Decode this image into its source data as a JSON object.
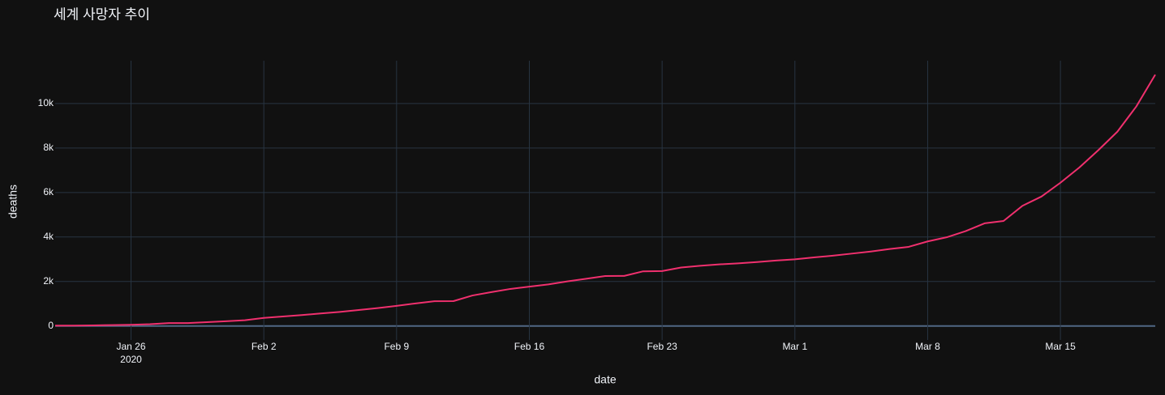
{
  "chart_data": {
    "type": "line",
    "title": "세계 사망자 추이",
    "x_label": "date",
    "y_label": "deaths",
    "x": [
      "2020-01-22",
      "2020-01-23",
      "2020-01-24",
      "2020-01-25",
      "2020-01-26",
      "2020-01-27",
      "2020-01-28",
      "2020-01-29",
      "2020-01-30",
      "2020-01-31",
      "2020-02-01",
      "2020-02-02",
      "2020-02-03",
      "2020-02-04",
      "2020-02-05",
      "2020-02-06",
      "2020-02-07",
      "2020-02-08",
      "2020-02-09",
      "2020-02-10",
      "2020-02-11",
      "2020-02-12",
      "2020-02-13",
      "2020-02-14",
      "2020-02-15",
      "2020-02-16",
      "2020-02-17",
      "2020-02-18",
      "2020-02-19",
      "2020-02-20",
      "2020-02-21",
      "2020-02-22",
      "2020-02-23",
      "2020-02-24",
      "2020-02-25",
      "2020-02-26",
      "2020-02-27",
      "2020-02-28",
      "2020-02-29",
      "2020-03-01",
      "2020-03-02",
      "2020-03-03",
      "2020-03-04",
      "2020-03-05",
      "2020-03-06",
      "2020-03-07",
      "2020-03-08",
      "2020-03-09",
      "2020-03-10",
      "2020-03-11",
      "2020-03-12",
      "2020-03-13",
      "2020-03-14",
      "2020-03-15",
      "2020-03-16",
      "2020-03-17",
      "2020-03-18",
      "2020-03-19",
      "2020-03-20"
    ],
    "series": [
      {
        "color": "#f0306e",
        "values": [
          17,
          18,
          26,
          42,
          56,
          82,
          131,
          133,
          171,
          213,
          259,
          362,
          426,
          492,
          564,
          634,
          719,
          806,
          906,
          1013,
          1113,
          1118,
          1371,
          1523,
          1666,
          1770,
          1868,
          2007,
          2122,
          2247,
          2251,
          2458,
          2469,
          2629,
          2708,
          2770,
          2814,
          2872,
          2941,
          2996,
          3085,
          3160,
          3254,
          3348,
          3460,
          3558,
          3802,
          3988,
          4262,
          4615,
          4720,
          5404,
          5819,
          6440,
          7126,
          7905,
          8733,
          9867,
          11299
        ]
      }
    ],
    "xlim": [
      "2020-01-22",
      "2020-03-20"
    ],
    "xticks": [
      {
        "value": "2020-01-26",
        "label": "Jan 26"
      },
      {
        "value": "2020-02-02",
        "label": "Feb 2"
      },
      {
        "value": "2020-02-09",
        "label": "Feb 9"
      },
      {
        "value": "2020-02-16",
        "label": "Feb 16"
      },
      {
        "value": "2020-02-23",
        "label": "Feb 23"
      },
      {
        "value": "2020-03-01",
        "label": "Mar 1"
      },
      {
        "value": "2020-03-08",
        "label": "Mar 8"
      },
      {
        "value": "2020-03-15",
        "label": "Mar 15"
      }
    ],
    "x_year_label": "2020",
    "ylim": [
      -628,
      11925
    ],
    "yticks": [
      0,
      {
        "value": 2000,
        "label": "2k"
      },
      {
        "value": 4000,
        "label": "4k"
      },
      {
        "value": 6000,
        "label": "6k"
      },
      {
        "value": 8000,
        "label": "8k"
      },
      {
        "value": 10000,
        "label": "10k"
      }
    ],
    "grid": true
  }
}
